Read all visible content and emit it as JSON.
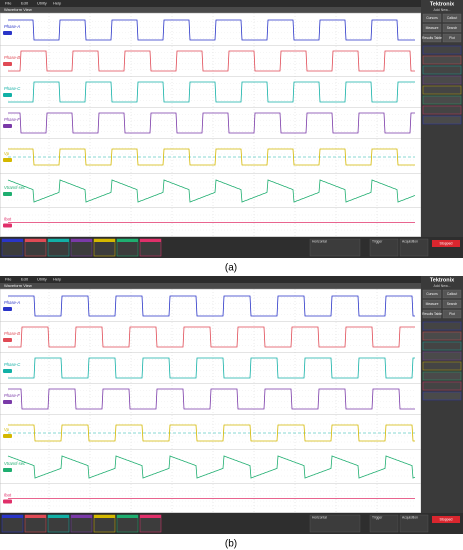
{
  "panels": [
    {
      "caption": "(a)",
      "menu": [
        "File",
        "Edit",
        "Utility",
        "Help"
      ],
      "view": "Waveform View",
      "brand": "Tektronix",
      "add": "Add New...",
      "buttons": [
        "Cursors",
        "Callout",
        "Measure",
        "Search",
        "Results Table",
        "Plot"
      ],
      "lanes": [
        "Phase-A",
        "Phase-B",
        "Phase-C",
        "Phase-F",
        "Vp",
        "Vtransf-sec",
        "Ibat"
      ],
      "footer": [
        "Horizontal",
        "Trigger",
        "Acquisition"
      ],
      "stop": "Stopped"
    },
    {
      "caption": "(b)",
      "menu": [
        "File",
        "Edit",
        "Utility",
        "Help"
      ],
      "view": "Waveform View",
      "brand": "Tektronix",
      "add": "Add New...",
      "buttons": [
        "Cursors",
        "Callout",
        "Measure",
        "Search",
        "Results Table",
        "Plot"
      ],
      "lanes": [
        "Phase-A",
        "Phase-B",
        "Phase-C",
        "Phase-F",
        "Vp",
        "Vtransf-sec",
        "Ibat"
      ],
      "footer": [
        "Horizontal",
        "Trigger",
        "Acquisition"
      ],
      "stop": "Stopped"
    }
  ]
}
